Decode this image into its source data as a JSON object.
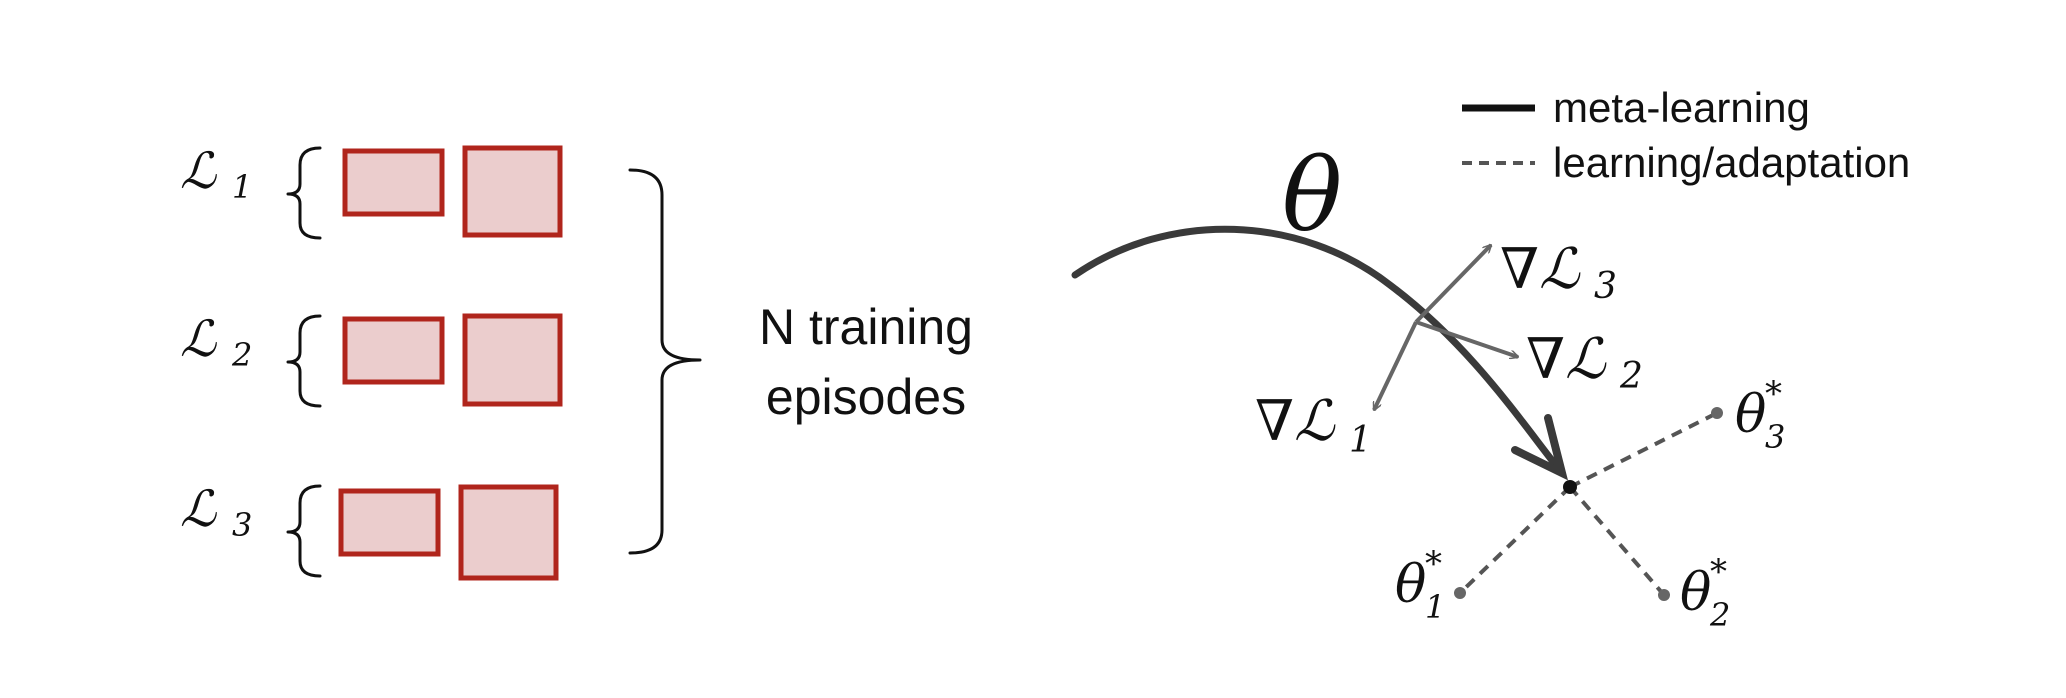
{
  "colors": {
    "box_fill": "#ebcdcd",
    "box_stroke": "#b0251c",
    "meta_path": "#3a3a3a",
    "gradient_arrow": "#666666",
    "adaptation_dash": "#555555",
    "text": "#111111"
  },
  "left_panel": {
    "tasks": [
      {
        "loss_symbol": "ℒ",
        "subscript": "1"
      },
      {
        "loss_symbol": "ℒ",
        "subscript": "2"
      },
      {
        "loss_symbol": "ℒ",
        "subscript": "3"
      }
    ],
    "episodes_label_line1": "N training",
    "episodes_label_line2": "episodes"
  },
  "right_panel": {
    "theta_label": "θ",
    "gradients": [
      {
        "symbol": "∇ℒ",
        "subscript": "1"
      },
      {
        "symbol": "∇ℒ",
        "subscript": "2"
      },
      {
        "symbol": "∇ℒ",
        "subscript": "3"
      }
    ],
    "optima": [
      {
        "symbol": "θ",
        "superscript": "*",
        "subscript": "1"
      },
      {
        "symbol": "θ",
        "superscript": "*",
        "subscript": "2"
      },
      {
        "symbol": "θ",
        "superscript": "*",
        "subscript": "3"
      }
    ],
    "legend": {
      "meta_learning": "meta-learning",
      "adaptation": "learning/adaptation"
    }
  }
}
